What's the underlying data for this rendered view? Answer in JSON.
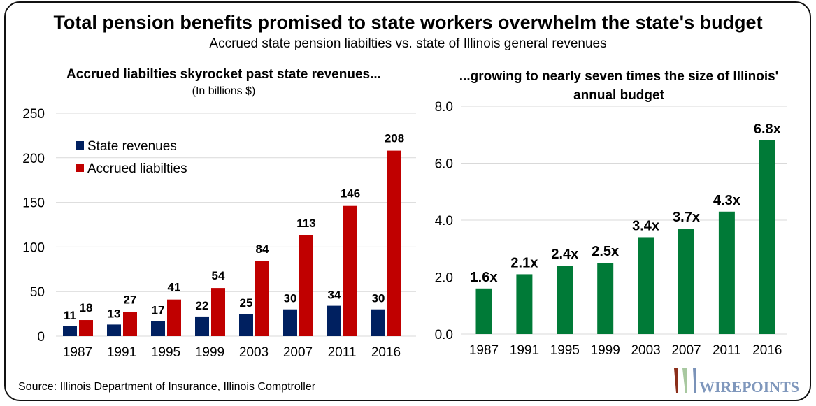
{
  "title": "Total pension benefits promised to state workers overwhelm the state's budget",
  "subtitle": "Accrued state pension liabilties vs. state of Illinois general revenues",
  "source": "Source: Illinois Department of Insurance, Illinois Comptroller",
  "logo": "WIREPOINTS",
  "colors": {
    "revenues": "#002060",
    "liabilities": "#C00000",
    "ratio": "#007A37",
    "grid": "#D9D9D9"
  },
  "chart_data": [
    {
      "type": "bar",
      "title": "Accrued liabilties skyrocket past state revenues...",
      "subtitle": "(In billions $)",
      "categories": [
        "1987",
        "1991",
        "1995",
        "1999",
        "2003",
        "2007",
        "2011",
        "2016"
      ],
      "series": [
        {
          "name": "State revenues",
          "values": [
            11,
            13,
            17,
            22,
            25,
            30,
            34,
            30
          ]
        },
        {
          "name": "Accrued liabilties",
          "values": [
            18,
            27,
            41,
            54,
            84,
            113,
            146,
            208
          ]
        }
      ],
      "ylim": [
        0,
        250
      ],
      "yticks": [
        "0",
        "50",
        "100",
        "150",
        "200",
        "250"
      ],
      "grid": true,
      "legend": "top-left",
      "data_labels": true
    },
    {
      "type": "bar",
      "title": "...growing to nearly seven times the size of Illinois' annual budget",
      "categories": [
        "1987",
        "1991",
        "1995",
        "1999",
        "2003",
        "2007",
        "2011",
        "2016"
      ],
      "values": [
        1.6,
        2.1,
        2.4,
        2.5,
        3.4,
        3.7,
        4.3,
        6.8
      ],
      "labels": [
        "1.6x",
        "2.1x",
        "2.4x",
        "2.5x",
        "3.4x",
        "3.7x",
        "4.3x",
        "6.8x"
      ],
      "ylim": [
        0,
        8
      ],
      "yticks": [
        "0.0",
        "2.0",
        "4.0",
        "6.0",
        "8.0"
      ],
      "grid": true,
      "data_labels": true
    }
  ]
}
